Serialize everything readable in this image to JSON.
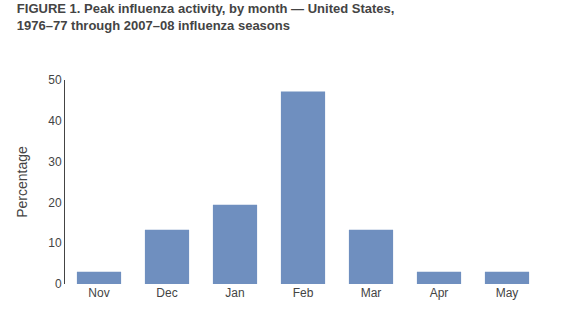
{
  "chart_data": {
    "type": "bar",
    "title": "FIGURE 1. Peak influenza activity, by month — United States,",
    "subtitle": "1976–77 through 2007–08 influenza seasons",
    "categories": [
      "Nov",
      "Dec",
      "Jan",
      "Feb",
      "Mar",
      "Apr",
      "May"
    ],
    "values": [
      3.0,
      13.3,
      19.4,
      47.2,
      13.3,
      3.0,
      3.0
    ],
    "color": "#6f8fbf",
    "ylabel": "Percentage",
    "ylim": [
      0,
      50
    ],
    "yticks": [
      0,
      10,
      20,
      30,
      40,
      50
    ],
    "grid": false
  }
}
